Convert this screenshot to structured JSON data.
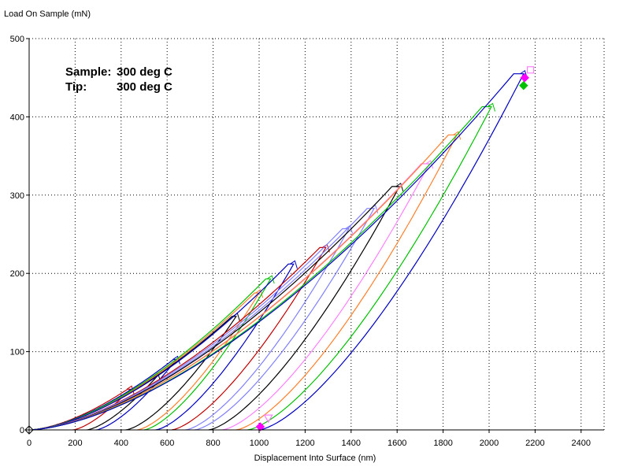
{
  "chart_data": {
    "type": "line",
    "ylabel": "Load On Sample (mN)",
    "xlabel": "Displacement Into Surface (nm)",
    "xlim": [
      0,
      2500
    ],
    "ylim": [
      0,
      500
    ],
    "xticks": [
      0,
      200,
      400,
      600,
      800,
      1000,
      1200,
      1400,
      1600,
      1800,
      2000,
      2200,
      2400
    ],
    "yticks": [
      0,
      100,
      200,
      300,
      400,
      500
    ],
    "grid": true,
    "annotations": [
      {
        "label": "Sample:",
        "value": "300 deg C"
      },
      {
        "label": "Tip:",
        "value": "300 deg C"
      }
    ],
    "series": [
      {
        "color": "#c00000",
        "max_load": 52,
        "max_disp": 440,
        "residual": 190
      },
      {
        "color": "#000000",
        "max_load": 68,
        "max_disp": 555,
        "residual": 250
      },
      {
        "color": "#0000c0",
        "max_load": 90,
        "max_disp": 640,
        "residual": 290
      },
      {
        "color": "#000000",
        "max_load": 145,
        "max_disp": 900,
        "residual": 420
      },
      {
        "color": "#ff7f2a",
        "max_load": 175,
        "max_disp": 1000,
        "residual": 470
      },
      {
        "color": "#00c000",
        "max_load": 193,
        "max_disp": 1050,
        "residual": 500
      },
      {
        "color": "#0000c0",
        "max_load": 212,
        "max_disp": 1150,
        "residual": 550
      },
      {
        "color": "#c00000",
        "max_load": 233,
        "max_disp": 1290,
        "residual": 620
      },
      {
        "color": "#8080ff",
        "max_load": 257,
        "max_disp": 1390,
        "residual": 680
      },
      {
        "color": "#8080ff",
        "max_load": 283,
        "max_disp": 1500,
        "residual": 720
      },
      {
        "color": "#000000",
        "max_load": 311,
        "max_disp": 1610,
        "residual": 780
      },
      {
        "color": "#ff80ff",
        "max_load": 340,
        "max_disp": 1740,
        "residual": 840
      },
      {
        "color": "#ff7f2a",
        "max_load": 377,
        "max_disp": 1860,
        "residual": 900
      },
      {
        "color": "#00c000",
        "max_load": 413,
        "max_disp": 2010,
        "residual": 950
      },
      {
        "color": "#0000c0",
        "max_load": 455,
        "max_disp": 2150,
        "residual": 1000
      }
    ],
    "markers": [
      {
        "shape": "diamond",
        "x": 0,
        "y": 0,
        "color": "#ffffff"
      },
      {
        "shape": "diamond",
        "x": 1005,
        "y": 4,
        "color": "#ff00ff"
      },
      {
        "shape": "triangle-down",
        "x": 1040,
        "y": 15,
        "color": "#ff80ff"
      },
      {
        "shape": "diamond",
        "x": 2150,
        "y": 440,
        "color": "#00c000"
      },
      {
        "shape": "diamond",
        "x": 2155,
        "y": 450,
        "color": "#ff00ff"
      },
      {
        "shape": "square",
        "x": 2180,
        "y": 460,
        "color": "#ff80ff"
      }
    ]
  }
}
